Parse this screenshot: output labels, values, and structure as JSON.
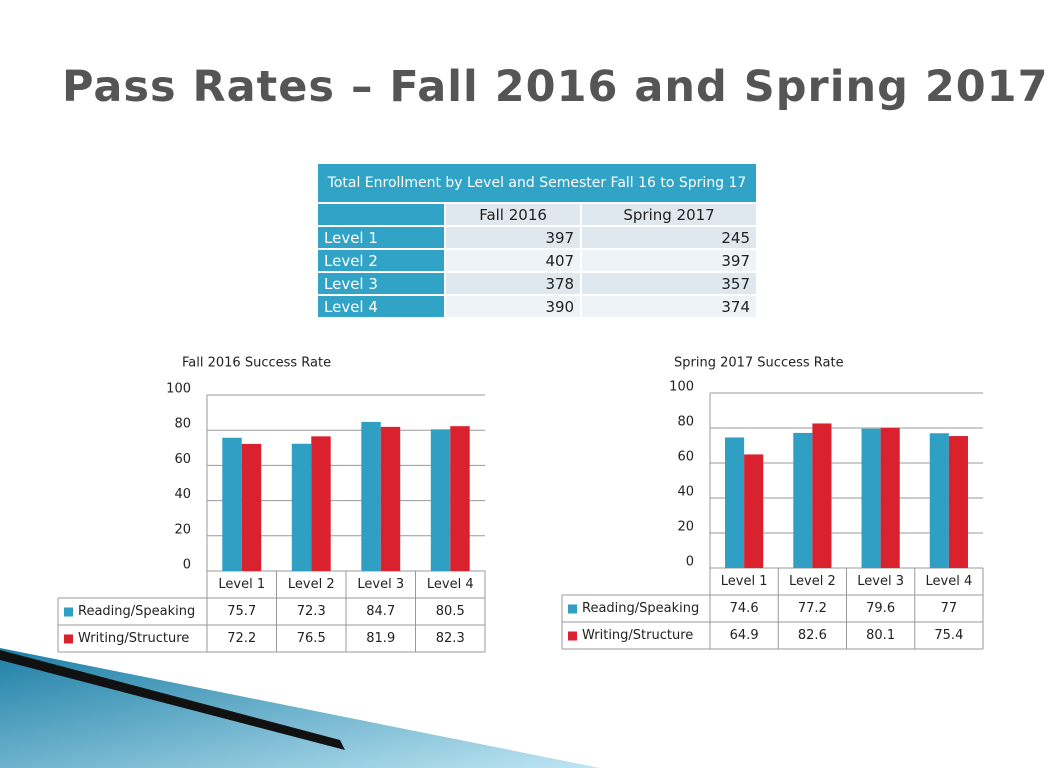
{
  "title": "Pass Rates – Fall 2016 and Spring 2017",
  "table": {
    "caption": "Total Enrollment by Level and Semester Fall 16 to Spring 17",
    "columns": [
      "Fall 2016",
      "Spring 2017"
    ],
    "rows": [
      {
        "label": "Level 1",
        "values": [
          397,
          245
        ]
      },
      {
        "label": "Level 2",
        "values": [
          407,
          397
        ]
      },
      {
        "label": "Level 3",
        "values": [
          378,
          357
        ]
      },
      {
        "label": "Level 4",
        "values": [
          390,
          374
        ]
      }
    ]
  },
  "chart_data": [
    {
      "type": "bar",
      "title": "Fall 2016 Success Rate",
      "categories": [
        "Level 1",
        "Level 2",
        "Level 3",
        "Level 4"
      ],
      "ylim": [
        0,
        100
      ],
      "yticks": [
        0,
        20,
        40,
        60,
        80,
        100
      ],
      "grid": true,
      "series": [
        {
          "name": "Reading/Speaking",
          "color": "#2f9fc4",
          "values": [
            75.7,
            72.3,
            84.7,
            80.5
          ]
        },
        {
          "name": "Writing/Structure",
          "color": "#d9222e",
          "values": [
            72.2,
            76.5,
            81.9,
            82.3
          ]
        }
      ]
    },
    {
      "type": "bar",
      "title": "Spring 2017 Success Rate",
      "categories": [
        "Level 1",
        "Level 2",
        "Level 3",
        "Level 4"
      ],
      "ylim": [
        0,
        100
      ],
      "yticks": [
        0,
        20,
        40,
        60,
        80,
        100
      ],
      "grid": true,
      "series": [
        {
          "name": "Reading/Speaking",
          "color": "#2f9fc4",
          "values": [
            74.6,
            77.2,
            79.6,
            77
          ]
        },
        {
          "name": "Writing/Structure",
          "color": "#d9222e",
          "values": [
            64.9,
            82.6,
            80.1,
            75.4
          ]
        }
      ]
    }
  ]
}
